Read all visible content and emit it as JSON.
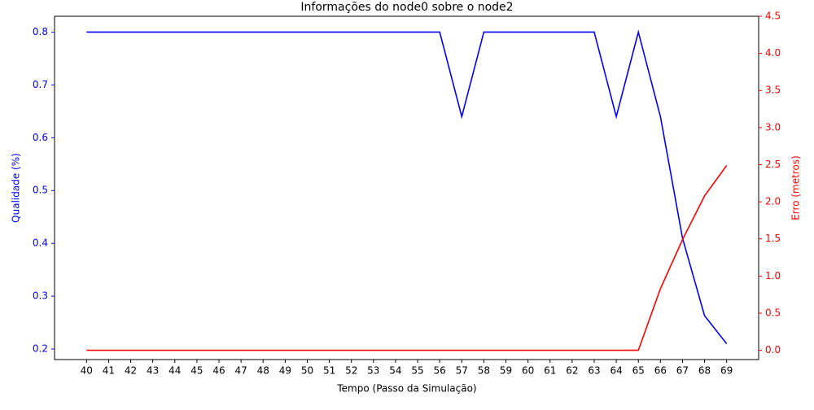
{
  "chart_data": {
    "type": "line",
    "title": "Informações do node0 sobre o node2",
    "xlabel": "Tempo (Passo da Simulação)",
    "ylabel": "Qualidade (%)",
    "y2label": "Erro (metros)",
    "x": [
      40,
      41,
      42,
      43,
      44,
      45,
      46,
      47,
      48,
      49,
      50,
      51,
      52,
      53,
      54,
      55,
      56,
      57,
      58,
      59,
      60,
      61,
      62,
      63,
      64,
      65,
      66,
      67,
      68,
      69
    ],
    "series": [
      {
        "color": "#0000ff",
        "axis": "y",
        "values": [
          0.8,
          0.8,
          0.8,
          0.8,
          0.8,
          0.8,
          0.8,
          0.8,
          0.8,
          0.8,
          0.8,
          0.8,
          0.8,
          0.8,
          0.8,
          0.8,
          0.8,
          0.64,
          0.8,
          0.8,
          0.8,
          0.8,
          0.8,
          0.8,
          0.64,
          0.8,
          0.64,
          0.41,
          0.263,
          0.21
        ]
      },
      {
        "color": "#ff0000",
        "axis": "y2",
        "values": [
          0,
          0,
          0,
          0,
          0,
          0,
          0,
          0,
          0,
          0,
          0,
          0,
          0,
          0,
          0,
          0,
          0,
          0,
          0,
          0,
          0,
          0,
          0,
          0,
          0,
          0,
          0.83,
          1.49,
          2.08,
          2.49
        ]
      }
    ],
    "xlim": [
      38.55,
      70.45
    ],
    "xticks": [
      40,
      41,
      42,
      43,
      44,
      45,
      46,
      47,
      48,
      49,
      50,
      51,
      52,
      53,
      54,
      55,
      56,
      57,
      58,
      59,
      60,
      61,
      62,
      63,
      64,
      65,
      66,
      67,
      68,
      69
    ],
    "ylim": [
      0.18,
      0.83
    ],
    "yticks": [
      0.2,
      0.3,
      0.4,
      0.5,
      0.6,
      0.7,
      0.8
    ],
    "y2lim": [
      -0.125,
      4.5
    ],
    "y2ticks": [
      {
        "value": 0,
        "label": "0.0"
      },
      0.5,
      {
        "value": 1,
        "label": "1.0"
      },
      1.5,
      {
        "value": 2,
        "label": "2.0"
      },
      2.5,
      {
        "value": 3,
        "label": "3.0"
      },
      3.5,
      {
        "value": 4,
        "label": "4.0"
      },
      4.5
    ]
  }
}
